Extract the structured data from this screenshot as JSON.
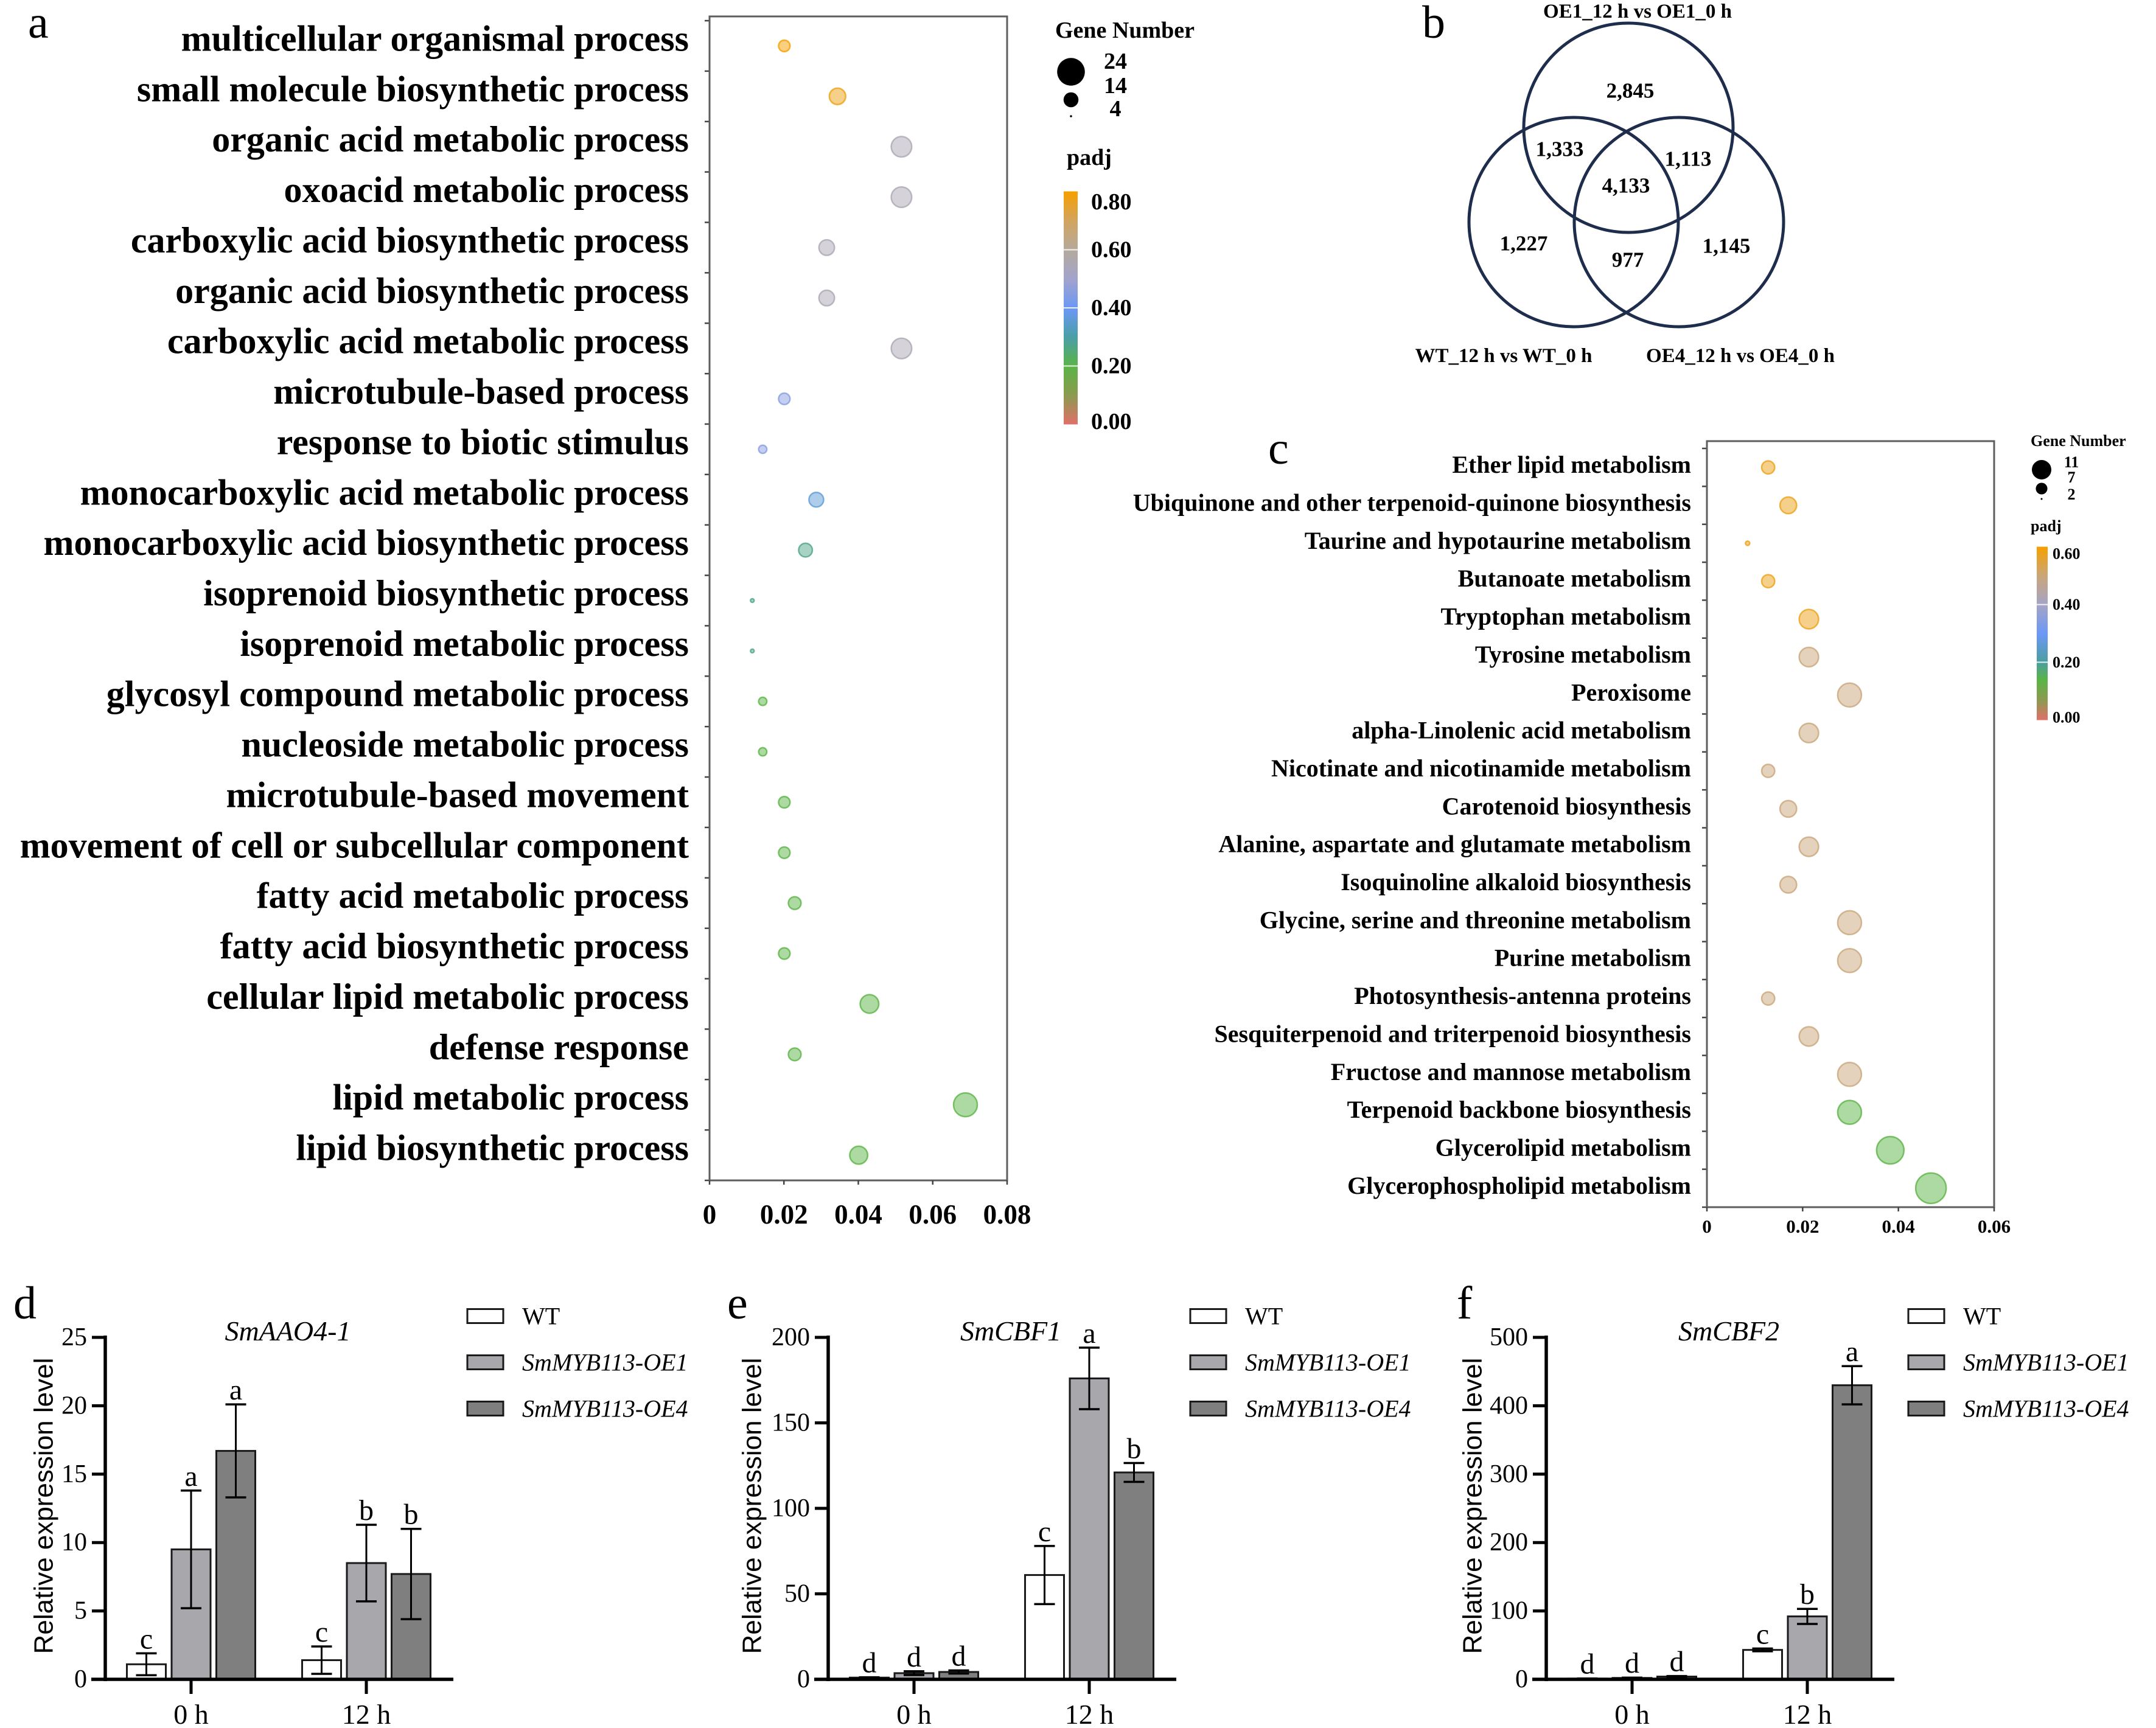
{
  "chart_data": [
    {
      "panel_label": "a",
      "type": "scatter",
      "subtype": "bubble",
      "title": "",
      "xlabel": "",
      "ylabel": "",
      "xlim": [
        0,
        0.08
      ],
      "xticks": [
        0,
        0.02,
        0.04,
        0.06,
        0.08
      ],
      "xtick_labels": [
        "0",
        "0.02",
        "0.04",
        "0.06",
        "0.08"
      ],
      "grid": false,
      "categories": [
        "multicellular organismal process",
        "small molecule biosynthetic process",
        "organic acid metabolic process",
        "oxoacid metabolic process",
        "carboxylic acid biosynthetic process",
        "organic acid biosynthetic process",
        "carboxylic acid metabolic process",
        "microtubule-based process",
        "response to biotic stimulus",
        "monocarboxylic acid metabolic process",
        "monocarboxylic acid biosynthetic process",
        "isoprenoid biosynthetic process",
        "isoprenoid metabolic process",
        "glycosyl compound metabolic process",
        "nucleoside metabolic process",
        "microtubule-based movement",
        "movement of cell or subcellular component",
        "fatty acid metabolic process",
        "fatty acid biosynthetic process",
        "cellular lipid metabolic process",
        "defense response",
        "lipid metabolic process",
        "lipid biosynthetic process"
      ],
      "x": [
        0.0201,
        0.0344,
        0.0516,
        0.0516,
        0.0315,
        0.0315,
        0.0516,
        0.0201,
        0.0143,
        0.0287,
        0.0258,
        0.0115,
        0.0115,
        0.0143,
        0.0143,
        0.0201,
        0.0201,
        0.0229,
        0.0201,
        0.043,
        0.0229,
        0.0688,
        0.0401
      ],
      "gene_number": [
        7,
        12,
        18,
        18,
        11,
        11,
        18,
        7,
        5,
        10,
        9,
        4,
        4,
        5,
        5,
        7,
        7,
        8,
        7,
        15,
        8,
        24,
        14
      ],
      "padj": [
        0.8,
        0.78,
        0.55,
        0.55,
        0.55,
        0.55,
        0.55,
        0.45,
        0.45,
        0.36,
        0.27,
        0.27,
        0.27,
        0.2,
        0.2,
        0.2,
        0.2,
        0.2,
        0.2,
        0.2,
        0.2,
        0.2,
        0.2
      ],
      "size_legend": {
        "title": "Gene Number",
        "values": [
          24,
          14,
          4
        ],
        "labels": [
          "24",
          "14",
          "4"
        ]
      },
      "color_legend": {
        "title": "padj",
        "range": [
          0,
          0.8
        ],
        "ticks": [
          0.8,
          0.6,
          0.4,
          0.2,
          0.0
        ],
        "tick_labels": [
          "0.80",
          "0.60",
          "0.40",
          "0.20",
          "0.00"
        ],
        "stops": [
          {
            "value": 0.0,
            "color": "#e0706a"
          },
          {
            "value": 0.1,
            "color": "#8c9a50"
          },
          {
            "value": 0.2,
            "color": "#5bb446"
          },
          {
            "value": 0.3,
            "color": "#4a9fa6"
          },
          {
            "value": 0.4,
            "color": "#6c98f6"
          },
          {
            "value": 0.5,
            "color": "#a2a4cc"
          },
          {
            "value": 0.6,
            "color": "#b4aa9c"
          },
          {
            "value": 0.7,
            "color": "#d2a460"
          },
          {
            "value": 0.8,
            "color": "#f5a000"
          }
        ]
      },
      "legend_position": "right"
    },
    {
      "panel_label": "b",
      "type": "table",
      "subtype": "venn",
      "title": "",
      "circle_color": "#1f2d4d",
      "sets": [
        "OE1_12 h vs OE1_0 h",
        "WT_12 h vs WT_0 h",
        "OE4_12 h vs OE4_0 h"
      ],
      "regions": [
        {
          "sets": [
            0
          ],
          "count": 2845,
          "label": "2,845"
        },
        {
          "sets": [
            0,
            1
          ],
          "count": 1333,
          "label": "1,333"
        },
        {
          "sets": [
            0,
            2
          ],
          "count": 1113,
          "label": "1,113"
        },
        {
          "sets": [
            0,
            1,
            2
          ],
          "count": 4133,
          "label": "4,133"
        },
        {
          "sets": [
            1
          ],
          "count": 1227,
          "label": "1,227"
        },
        {
          "sets": [
            1,
            2
          ],
          "count": 977,
          "label": "977"
        },
        {
          "sets": [
            2
          ],
          "count": 1145,
          "label": "1,145"
        }
      ]
    },
    {
      "panel_label": "c",
      "type": "scatter",
      "subtype": "bubble",
      "title": "",
      "xlabel": "",
      "ylabel": "",
      "xlim": [
        0,
        0.06
      ],
      "xticks": [
        0,
        0.02,
        0.04,
        0.06
      ],
      "xtick_labels": [
        "0",
        "0.02",
        "0.04",
        "0.06"
      ],
      "grid": false,
      "categories": [
        "Ether lipid metabolism",
        "Ubiquinone and other terpenoid-quinone biosynthesis",
        "Taurine and hypotaurine metabolism",
        "Butanoate metabolism",
        "Tryptophan metabolism",
        "Tyrosine metabolism",
        "Peroxisome",
        "alpha-Linolenic acid metabolism",
        "Nicotinate and nicotinamide metabolism",
        "Carotenoid biosynthesis",
        "Alanine, aspartate and glutamate metabolism",
        "Isoquinoline alkaloid biosynthesis",
        "Glycine, serine and threonine metabolism",
        "Purine metabolism",
        "Photosynthesis-antenna proteins",
        "Sesquiterpenoid and triterpenoid biosynthesis",
        "Fructose and mannose metabolism",
        "Terpenoid backbone biosynthesis",
        "Glycerolipid metabolism",
        "Glycerophospholipid metabolism"
      ],
      "x": [
        0.0128,
        0.017,
        0.0085,
        0.0128,
        0.0213,
        0.0213,
        0.0298,
        0.0213,
        0.0128,
        0.017,
        0.0213,
        0.017,
        0.0298,
        0.0298,
        0.0128,
        0.0213,
        0.0298,
        0.0298,
        0.0383,
        0.0468
      ],
      "gene_number": [
        3,
        4,
        2,
        3,
        5,
        5,
        7,
        5,
        3,
        4,
        5,
        4,
        7,
        7,
        3,
        5,
        7,
        7,
        9,
        11
      ],
      "padj": [
        0.58,
        0.58,
        0.58,
        0.58,
        0.58,
        0.5,
        0.5,
        0.5,
        0.5,
        0.5,
        0.5,
        0.5,
        0.5,
        0.5,
        0.5,
        0.5,
        0.5,
        0.14,
        0.14,
        0.14
      ],
      "size_legend": {
        "title": "Gene Number",
        "values": [
          11,
          7,
          2
        ],
        "labels": [
          "11",
          "7",
          "2"
        ]
      },
      "color_legend": {
        "title": "padj",
        "range": [
          0,
          0.6
        ],
        "ticks": [
          0.6,
          0.4,
          0.2,
          0.0
        ],
        "tick_labels": [
          "0.60",
          "0.40",
          "0.20",
          "0.00"
        ],
        "stops": [
          {
            "value": 0.0,
            "color": "#e0706a"
          },
          {
            "value": 0.07,
            "color": "#8c9a50"
          },
          {
            "value": 0.14,
            "color": "#5bb446"
          },
          {
            "value": 0.2,
            "color": "#4a9fa0"
          },
          {
            "value": 0.3,
            "color": "#6c98f6"
          },
          {
            "value": 0.4,
            "color": "#a4a4c6"
          },
          {
            "value": 0.5,
            "color": "#c9a67a"
          },
          {
            "value": 0.6,
            "color": "#f5a000"
          }
        ]
      },
      "legend_position": "right"
    },
    {
      "panel_label": "d",
      "type": "bar",
      "title": "SmAAO4-1",
      "xlabel": "",
      "ylabel": "Relative expression level",
      "categories": [
        "0 h",
        "12 h"
      ],
      "ylim": [
        0,
        25
      ],
      "yticks": [
        0,
        5,
        10,
        15,
        20,
        25
      ],
      "ytick_labels": [
        "0",
        "5",
        "10",
        "15",
        "20",
        "25"
      ],
      "outline_color": "#1a1a1a",
      "legend_position": "top-right",
      "series": [
        {
          "name": "WT",
          "italic": false,
          "color": "#ffffff",
          "values": [
            1.1,
            1.4
          ],
          "errors": [
            0.8,
            1.0
          ],
          "letters": [
            "c",
            "c"
          ]
        },
        {
          "name": "SmMYB113-OE1",
          "italic": true,
          "color": "#a8a8ac",
          "values": [
            9.5,
            8.5
          ],
          "errors": [
            4.3,
            2.8
          ],
          "letters": [
            "a",
            "b"
          ]
        },
        {
          "name": "SmMYB113-OE4",
          "italic": true,
          "color": "#7f7f7f",
          "values": [
            16.7,
            7.7
          ],
          "errors": [
            3.4,
            3.3
          ],
          "letters": [
            "a",
            "b"
          ]
        }
      ]
    },
    {
      "panel_label": "e",
      "type": "bar",
      "title": "SmCBF1",
      "xlabel": "",
      "ylabel": "Relative expression level",
      "categories": [
        "0 h",
        "12 h"
      ],
      "ylim": [
        0,
        200
      ],
      "yticks": [
        0,
        50,
        100,
        150,
        200
      ],
      "ytick_labels": [
        "0",
        "50",
        "100",
        "150",
        "200"
      ],
      "outline_color": "#1a1a1a",
      "legend_position": "top-right",
      "series": [
        {
          "name": "WT",
          "italic": false,
          "color": "#ffffff",
          "values": [
            1.0,
            61
          ],
          "errors": [
            0.2,
            17
          ],
          "letters": [
            "d",
            "c"
          ]
        },
        {
          "name": "SmMYB113-OE1",
          "italic": true,
          "color": "#a8a8ac",
          "values": [
            3.6,
            176
          ],
          "errors": [
            1.1,
            18
          ],
          "letters": [
            "d",
            "a"
          ]
        },
        {
          "name": "SmMYB113-OE4",
          "italic": true,
          "color": "#7f7f7f",
          "values": [
            4.3,
            121
          ],
          "errors": [
            0.9,
            5.5
          ],
          "letters": [
            "d",
            "b"
          ]
        }
      ]
    },
    {
      "panel_label": "f",
      "type": "bar",
      "title": "SmCBF2",
      "xlabel": "",
      "ylabel": "Relative expression level",
      "categories": [
        "0 h",
        "12 h"
      ],
      "ylim": [
        0,
        500
      ],
      "yticks": [
        0,
        100,
        200,
        300,
        400,
        500
      ],
      "ytick_labels": [
        "0",
        "100",
        "200",
        "300",
        "400",
        "500"
      ],
      "outline_color": "#1a1a1a",
      "legend_position": "top-right",
      "series": [
        {
          "name": "WT",
          "italic": false,
          "color": "#ffffff",
          "values": [
            1.0,
            43
          ],
          "errors": [
            0.2,
            2
          ],
          "letters": [
            "d",
            "c"
          ]
        },
        {
          "name": "SmMYB113-OE1",
          "italic": true,
          "color": "#a8a8ac",
          "values": [
            2.0,
            92
          ],
          "errors": [
            0.5,
            11
          ],
          "letters": [
            "d",
            "b"
          ]
        },
        {
          "name": "SmMYB113-OE4",
          "italic": true,
          "color": "#7f7f7f",
          "values": [
            4.0,
            430
          ],
          "errors": [
            0.8,
            28
          ],
          "letters": [
            "d",
            "a"
          ]
        }
      ]
    }
  ]
}
